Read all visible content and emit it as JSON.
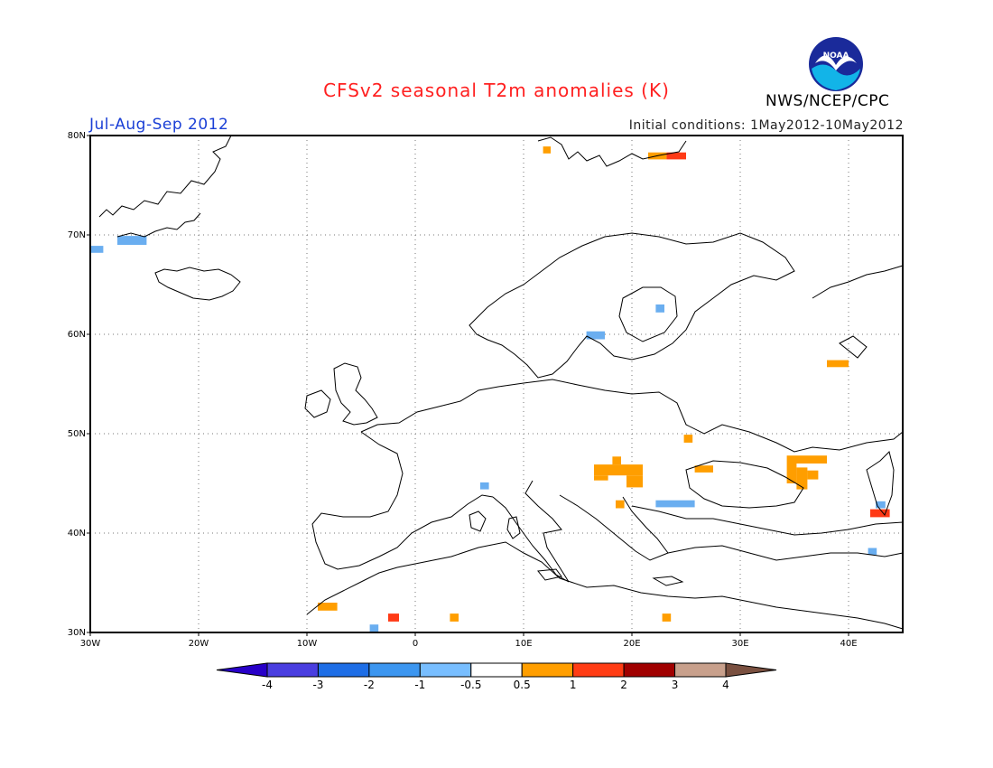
{
  "header": {
    "title": "CFSv2 seasonal T2m anomalies (K)",
    "title_color": "#ff2020",
    "period": "Jul-Aug-Sep 2012",
    "period_color": "#1a3fd6",
    "initial_conditions": "Initial conditions: 1May2012-10May2012",
    "agency": "NWS/NCEP/CPC",
    "logo_icon": "noaa-logo-icon"
  },
  "map": {
    "lon_range": [
      -30,
      45
    ],
    "lat_range": [
      30,
      80
    ],
    "x_ticks": [
      {
        "lon": -30,
        "label": "30W"
      },
      {
        "lon": -20,
        "label": "20W"
      },
      {
        "lon": -10,
        "label": "10W"
      },
      {
        "lon": 0,
        "label": "0"
      },
      {
        "lon": 10,
        "label": "10E"
      },
      {
        "lon": 20,
        "label": "20E"
      },
      {
        "lon": 30,
        "label": "30E"
      },
      {
        "lon": 40,
        "label": "40E"
      }
    ],
    "y_ticks": [
      {
        "lat": 30,
        "label": "30N"
      },
      {
        "lat": 40,
        "label": "40N"
      },
      {
        "lat": 50,
        "label": "50N"
      },
      {
        "lat": 60,
        "label": "60N"
      },
      {
        "lat": 70,
        "label": "70N"
      },
      {
        "lat": 80,
        "label": "80N"
      }
    ],
    "grid": true,
    "anomaly_cells": [
      {
        "lon0": -30,
        "lon1": -28.8,
        "lat0": 68.2,
        "lat1": 68.9,
        "color": "#6aaef0"
      },
      {
        "lon0": -27.5,
        "lon1": -24.8,
        "lat0": 69.0,
        "lat1": 69.9,
        "color": "#6aaef0"
      },
      {
        "lon0": 11.8,
        "lon1": 12.5,
        "lat0": 78.2,
        "lat1": 78.9,
        "color": "#ff9e00"
      },
      {
        "lon0": 21.5,
        "lon1": 23.2,
        "lat0": 77.6,
        "lat1": 78.3,
        "color": "#ff9e00"
      },
      {
        "lon0": 23.2,
        "lon1": 25.0,
        "lat0": 77.6,
        "lat1": 78.3,
        "color": "#ff3a16"
      },
      {
        "lon0": 22.2,
        "lon1": 23.0,
        "lat0": 62.2,
        "lat1": 63.0,
        "color": "#6aaef0"
      },
      {
        "lon0": 15.8,
        "lon1": 17.5,
        "lat0": 59.5,
        "lat1": 60.3,
        "color": "#6aaef0"
      },
      {
        "lon0": 38.0,
        "lon1": 40.0,
        "lat0": 56.7,
        "lat1": 57.4,
        "color": "#ff9e00"
      },
      {
        "lon0": 24.8,
        "lon1": 25.6,
        "lat0": 49.1,
        "lat1": 49.9,
        "color": "#ff9e00"
      },
      {
        "lon0": 16.5,
        "lon1": 21.0,
        "lat0": 45.8,
        "lat1": 46.9,
        "color": "#ff9e00"
      },
      {
        "lon0": 18.2,
        "lon1": 19.0,
        "lat0": 46.9,
        "lat1": 47.7,
        "color": "#ff9e00"
      },
      {
        "lon0": 19.5,
        "lon1": 21.0,
        "lat0": 44.6,
        "lat1": 45.8,
        "color": "#ff9e00"
      },
      {
        "lon0": 16.5,
        "lon1": 17.8,
        "lat0": 45.3,
        "lat1": 45.8,
        "color": "#ff9e00"
      },
      {
        "lon0": 25.8,
        "lon1": 27.5,
        "lat0": 46.1,
        "lat1": 46.8,
        "color": "#ff9e00"
      },
      {
        "lon0": 34.3,
        "lon1": 38.0,
        "lat0": 47.0,
        "lat1": 47.8,
        "color": "#ff9e00"
      },
      {
        "lon0": 34.3,
        "lon1": 35.2,
        "lat0": 45.0,
        "lat1": 47.0,
        "color": "#ff9e00"
      },
      {
        "lon0": 35.2,
        "lon1": 36.2,
        "lat0": 44.4,
        "lat1": 46.6,
        "color": "#ff9e00"
      },
      {
        "lon0": 36.2,
        "lon1": 37.2,
        "lat0": 45.4,
        "lat1": 46.3,
        "color": "#ff9e00"
      },
      {
        "lon0": 6.0,
        "lon1": 6.8,
        "lat0": 44.4,
        "lat1": 45.1,
        "color": "#6aaef0"
      },
      {
        "lon0": 18.5,
        "lon1": 19.3,
        "lat0": 42.5,
        "lat1": 43.3,
        "color": "#ff9e00"
      },
      {
        "lon0": 22.2,
        "lon1": 25.8,
        "lat0": 42.6,
        "lat1": 43.3,
        "color": "#6aaef0"
      },
      {
        "lon0": 42.5,
        "lon1": 43.4,
        "lat0": 42.5,
        "lat1": 43.2,
        "color": "#6aaef0"
      },
      {
        "lon0": 42.0,
        "lon1": 43.8,
        "lat0": 41.6,
        "lat1": 42.4,
        "color": "#ff3a16"
      },
      {
        "lon0": 41.8,
        "lon1": 42.6,
        "lat0": 37.8,
        "lat1": 38.5,
        "color": "#6aaef0"
      },
      {
        "lon0": -9.0,
        "lon1": -7.2,
        "lat0": 32.2,
        "lat1": 33.0,
        "color": "#ff9e00"
      },
      {
        "lon0": -2.5,
        "lon1": -1.5,
        "lat0": 31.1,
        "lat1": 31.9,
        "color": "#ff3a16"
      },
      {
        "lon0": 3.2,
        "lon1": 4.0,
        "lat0": 31.1,
        "lat1": 31.9,
        "color": "#ff9e00"
      },
      {
        "lon0": 22.8,
        "lon1": 23.6,
        "lat0": 31.1,
        "lat1": 31.9,
        "color": "#ff9e00"
      },
      {
        "lon0": -4.2,
        "lon1": -3.4,
        "lat0": 30.0,
        "lat1": 30.8,
        "color": "#6aaef0"
      }
    ]
  },
  "colorbar": {
    "colors": [
      "#2800c8",
      "#4a3ee0",
      "#1e6ee6",
      "#3c96f0",
      "#78beff",
      "#ffffff",
      "#ff9e00",
      "#ff3c14",
      "#a00000",
      "#c8a08c",
      "#7a5040"
    ],
    "labels": [
      "-4",
      "-3",
      "-2",
      "-1",
      "-0.5",
      "0.5",
      "1",
      "2",
      "3",
      "4"
    ]
  }
}
